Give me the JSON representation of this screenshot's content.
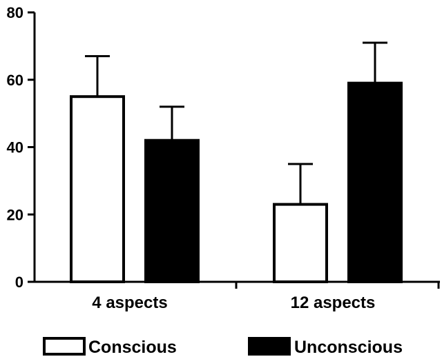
{
  "chart_data": {
    "type": "bar",
    "title": "",
    "xlabel": "",
    "ylabel": "",
    "ylim": [
      0,
      80
    ],
    "yticks": [
      0,
      20,
      40,
      60,
      80
    ],
    "categories": [
      "4 aspects",
      "12 aspects"
    ],
    "series": [
      {
        "name": "Conscious",
        "values": [
          55,
          23
        ],
        "errors": [
          12,
          12
        ],
        "fill": "#ffffff",
        "stroke": "#000000"
      },
      {
        "name": "Unconscious",
        "values": [
          42,
          59
        ],
        "errors": [
          10,
          12
        ],
        "fill": "#000000",
        "stroke": "#000000"
      }
    ],
    "error_bars": "upper",
    "grid": false,
    "legend": {
      "position": "bottom",
      "entries": [
        "Conscious",
        "Unconscious"
      ]
    }
  }
}
